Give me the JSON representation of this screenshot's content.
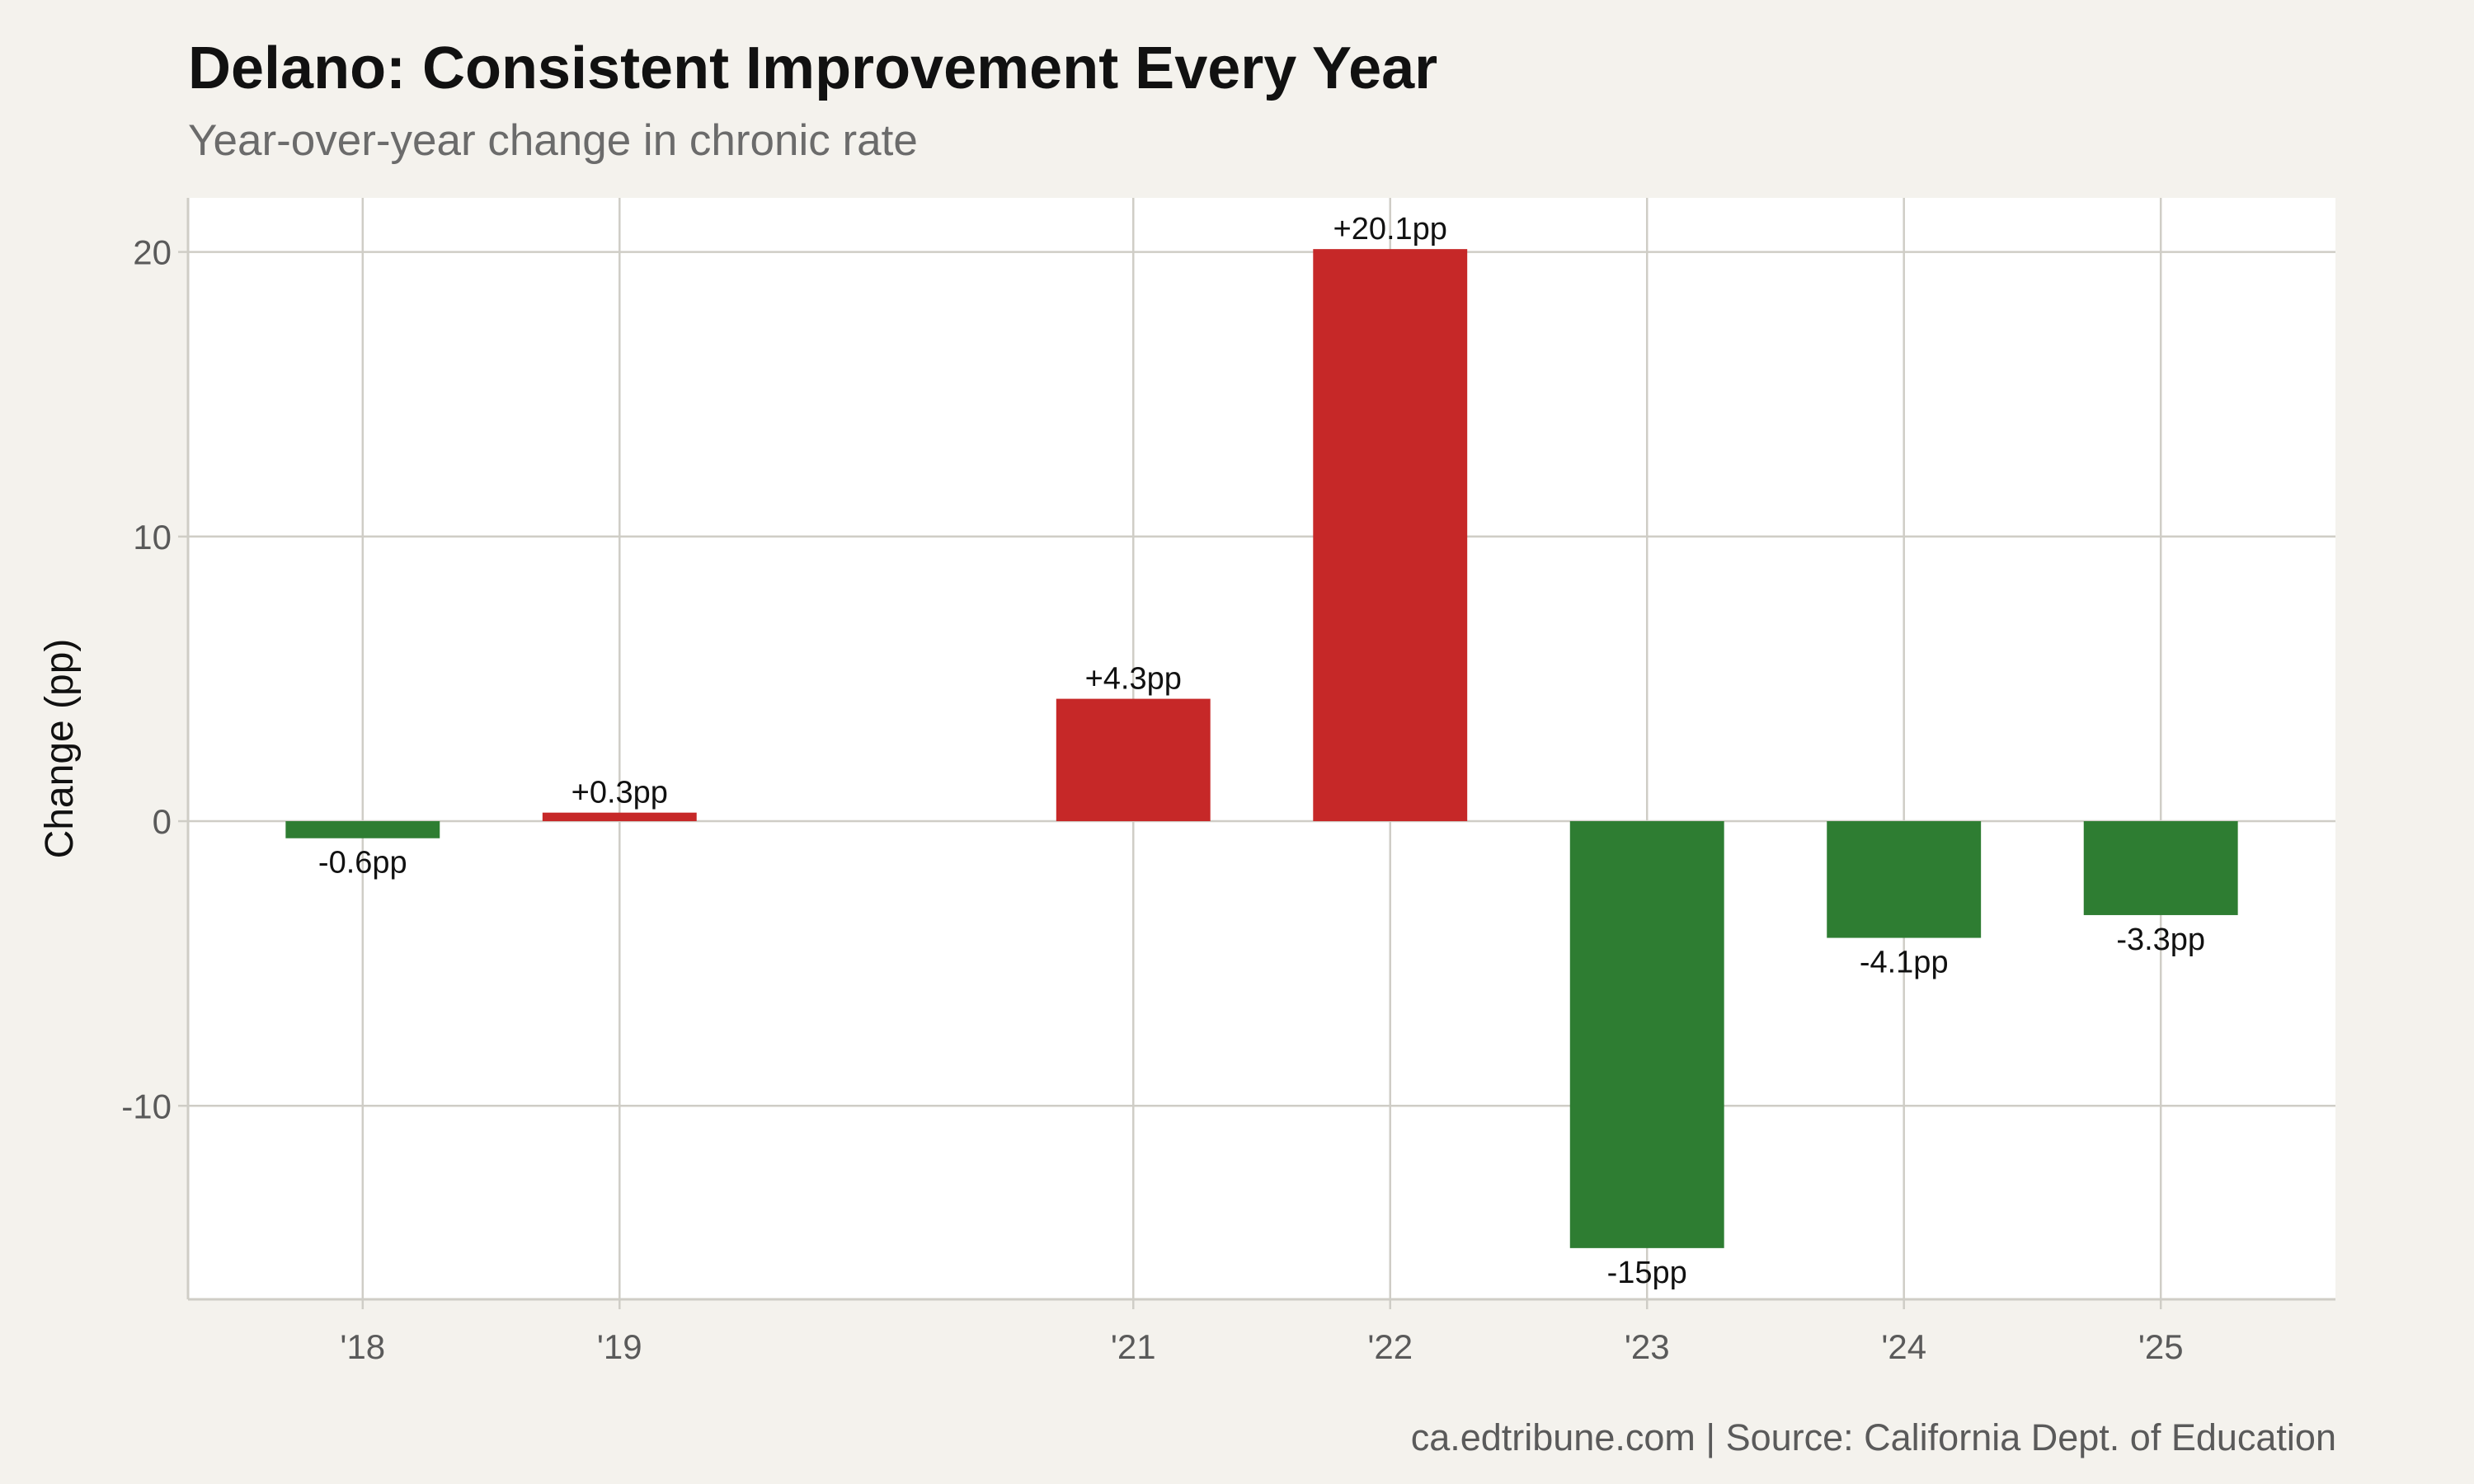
{
  "chart_data": {
    "type": "bar",
    "title": "Delano: Consistent Improvement Every Year",
    "subtitle": "Year-over-year change in chronic rate",
    "ylabel": "Change (pp)",
    "xlabel": "",
    "caption": "ca.edtribune.com | Source: California Dept. of Education",
    "x_domain": [
      17.32,
      25.68
    ],
    "ylim": [
      -16.8,
      21.9
    ],
    "yticks": [
      20,
      10,
      0,
      -10
    ],
    "grid": true,
    "legend": "none",
    "categories": [
      "'18",
      "'19",
      "'21",
      "'22",
      "'23",
      "'24",
      "'25"
    ],
    "x": [
      18,
      19,
      21,
      22,
      23,
      24,
      25
    ],
    "values": [
      -0.6,
      0.3,
      4.3,
      20.1,
      -15,
      -4.1,
      -3.3
    ],
    "labels": [
      "-0.6pp",
      "+0.3pp",
      "+4.3pp",
      "+20.1pp",
      "-15pp",
      "-4.1pp",
      "-3.3pp"
    ],
    "colors": {
      "increase": "#c62828",
      "decrease": "#2e7d32",
      "panel": "#ffffff",
      "background": "#f4f2ed",
      "grid": "#cfcdc6"
    }
  }
}
